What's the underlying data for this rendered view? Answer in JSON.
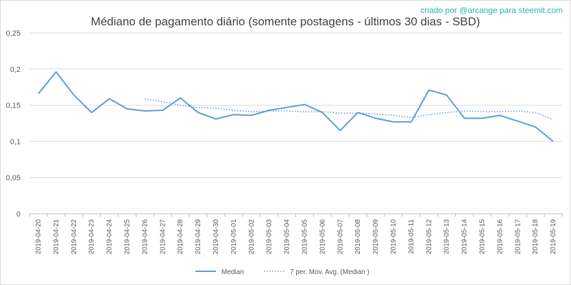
{
  "credit": "criado por @arcange para steemit.com",
  "chart_data": {
    "type": "line",
    "title": "Médiano de pagamento diário (somente postagens - últimos 30 dias - SBD)",
    "xlabel": "",
    "ylabel": "",
    "ylim": [
      0,
      0.25
    ],
    "yticks": [
      "0",
      "0,05",
      "0,1",
      "0,15",
      "0,2",
      "0,25"
    ],
    "grid": "horizontal",
    "legend_position": "bottom",
    "categories": [
      "2019-04-20",
      "2019-04-21",
      "2019-04-22",
      "2019-04-23",
      "2019-04-24",
      "2019-04-25",
      "2019-04-26",
      "2019-04-27",
      "2019-04-28",
      "2019-04-29",
      "2019-04-30",
      "2019-05-01",
      "2019-05-02",
      "2019-05-03",
      "2019-05-04",
      "2019-05-05",
      "2019-05-06",
      "2019-05-07",
      "2019-05-08",
      "2019-05-09",
      "2019-05-10",
      "2019-05-11",
      "2019-05-12",
      "2019-05-13",
      "2019-05-14",
      "2019-05-15",
      "2019-05-16",
      "2019-05-17",
      "2019-05-18",
      "2019-05-19"
    ],
    "series": [
      {
        "name": "Median",
        "style": "solid",
        "color": "#5b9bd5",
        "values": [
          0.166,
          0.196,
          0.164,
          0.14,
          0.159,
          0.145,
          0.142,
          0.143,
          0.16,
          0.14,
          0.131,
          0.137,
          0.136,
          0.143,
          0.147,
          0.151,
          0.14,
          0.115,
          0.14,
          0.132,
          0.127,
          0.127,
          0.171,
          0.164,
          0.132,
          0.132,
          0.136,
          0.128,
          0.12,
          0.1
        ]
      },
      {
        "name": "7 per. Mov. Avg. (Median )",
        "style": "dotted",
        "color": "#5b9bd5",
        "values": [
          null,
          null,
          null,
          null,
          null,
          null,
          0.159,
          0.155,
          0.15,
          0.147,
          0.146,
          0.143,
          0.141,
          0.142,
          0.142,
          0.141,
          0.141,
          0.139,
          0.139,
          0.138,
          0.136,
          0.133,
          0.137,
          0.14,
          0.142,
          0.141,
          0.141,
          0.142,
          0.14,
          0.13
        ]
      }
    ]
  }
}
